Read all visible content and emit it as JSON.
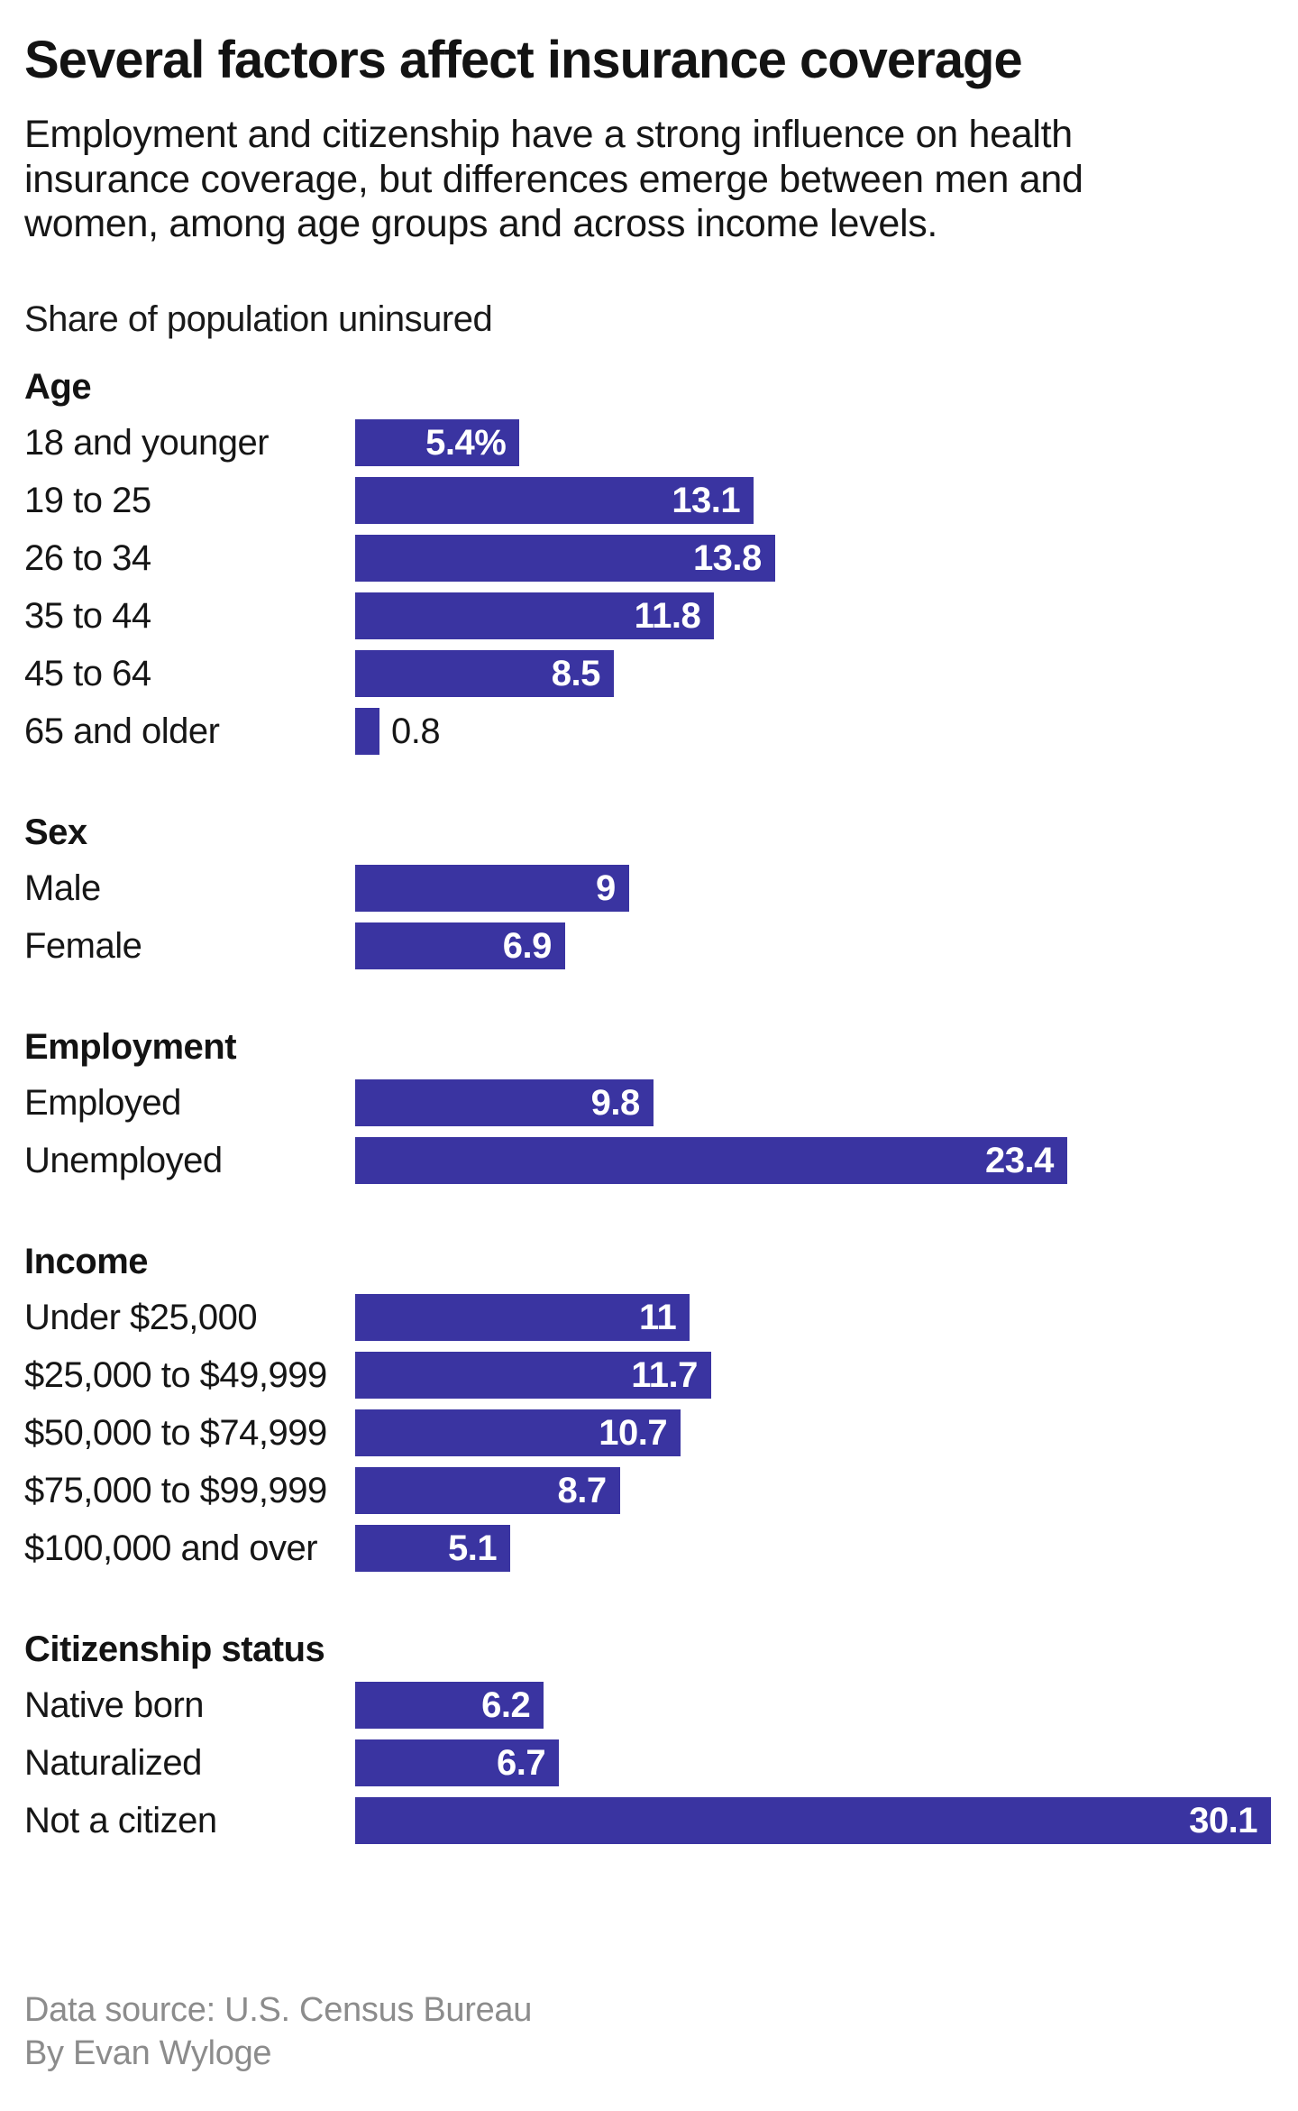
{
  "header": {
    "title": "Several factors affect insurance coverage",
    "subtitle": "Employment and citizenship have a strong influence on health insurance coverage, but differences emerge between men and women, among age groups and across income levels."
  },
  "chart_data": {
    "type": "bar",
    "orientation": "horizontal",
    "caption": "Share of population uninsured",
    "unit": "percent",
    "xlim": [
      0,
      30.1
    ],
    "bar_color": "#3a34a1",
    "value_label_color_inside": "#ffffff",
    "value_label_color_outside": "#161616",
    "grid": false,
    "legend": "none",
    "sections": [
      {
        "label": "Age",
        "rows": [
          {
            "category": "18 and younger",
            "value": 5.4,
            "display": "5.4%"
          },
          {
            "category": "19 to 25",
            "value": 13.1,
            "display": "13.1"
          },
          {
            "category": "26 to 34",
            "value": 13.8,
            "display": "13.8"
          },
          {
            "category": "35 to 44",
            "value": 11.8,
            "display": "11.8"
          },
          {
            "category": "45 to 64",
            "value": 8.5,
            "display": "8.5"
          },
          {
            "category": "65 and older",
            "value": 0.8,
            "display": "0.8",
            "label_outside": true
          }
        ]
      },
      {
        "label": "Sex",
        "rows": [
          {
            "category": "Male",
            "value": 9,
            "display": "9"
          },
          {
            "category": "Female",
            "value": 6.9,
            "display": "6.9"
          }
        ]
      },
      {
        "label": "Employment",
        "rows": [
          {
            "category": "Employed",
            "value": 9.8,
            "display": "9.8"
          },
          {
            "category": "Unemployed",
            "value": 23.4,
            "display": "23.4"
          }
        ]
      },
      {
        "label": "Income",
        "rows": [
          {
            "category": "Under $25,000",
            "value": 11,
            "display": "11"
          },
          {
            "category": "$25,000 to $49,999",
            "value": 11.7,
            "display": "11.7"
          },
          {
            "category": "$50,000 to $74,999",
            "value": 10.7,
            "display": "10.7"
          },
          {
            "category": "$75,000 to $99,999",
            "value": 8.7,
            "display": "8.7"
          },
          {
            "category": "$100,000 and over",
            "value": 5.1,
            "display": "5.1"
          }
        ]
      },
      {
        "label": "Citizenship status",
        "rows": [
          {
            "category": "Native born",
            "value": 6.2,
            "display": "6.2"
          },
          {
            "category": "Naturalized",
            "value": 6.7,
            "display": "6.7"
          },
          {
            "category": "Not a citizen",
            "value": 30.1,
            "display": "30.1"
          }
        ]
      }
    ]
  },
  "footer": {
    "source": "Data source: U.S. Census Bureau",
    "byline": "By Evan Wyloge"
  }
}
